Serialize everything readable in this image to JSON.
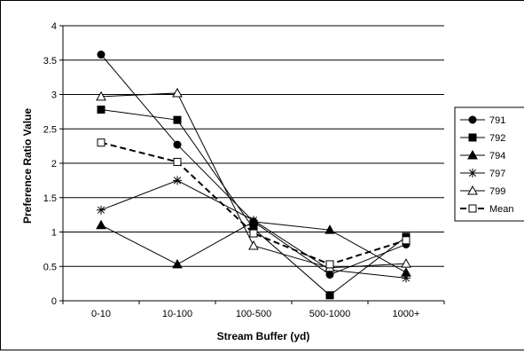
{
  "chart_data": {
    "type": "line",
    "title": "",
    "xlabel": "Stream Buffer (yd)",
    "ylabel": "Preference Ratio Value",
    "categories": [
      "0-10",
      "10-100",
      "100-500",
      "500-1000",
      "1000+"
    ],
    "ylim": [
      0,
      4
    ],
    "yticks": [
      "0",
      "0.5",
      "1",
      "1.5",
      "2",
      "2.5",
      "3",
      "3.5",
      "4"
    ],
    "grid": "horizontal",
    "legend_position": "right",
    "series": [
      {
        "name": "791",
        "marker": "circle",
        "dashed": false,
        "values": [
          3.58,
          2.27,
          1.15,
          0.38,
          0.82
        ]
      },
      {
        "name": "792",
        "marker": "square",
        "dashed": false,
        "values": [
          2.78,
          2.63,
          1.05,
          0.08,
          0.93
        ]
      },
      {
        "name": "794",
        "marker": "triangle",
        "dashed": false,
        "values": [
          1.1,
          0.53,
          1.15,
          1.03,
          0.41
        ]
      },
      {
        "name": "797",
        "marker": "star",
        "dashed": false,
        "values": [
          1.32,
          1.75,
          1.17,
          0.45,
          0.33
        ]
      },
      {
        "name": "799",
        "marker": "triangle-open",
        "dashed": false,
        "values": [
          2.97,
          3.02,
          0.8,
          0.48,
          0.54
        ]
      },
      {
        "name": "Mean",
        "marker": "square-open",
        "dashed": true,
        "values": [
          2.3,
          2.02,
          0.98,
          0.53,
          0.88
        ]
      }
    ]
  }
}
